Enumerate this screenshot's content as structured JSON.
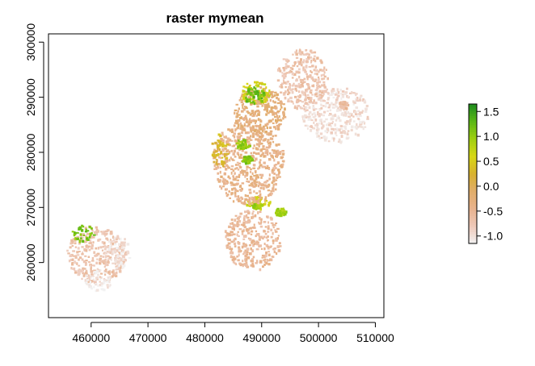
{
  "chart_data": {
    "type": "heatmap",
    "title": "raster mymean",
    "xlabel": "",
    "ylabel": "",
    "xlim": [
      452500,
      511500
    ],
    "ylim": [
      250000,
      301500
    ],
    "x_ticks": [
      460000,
      470000,
      480000,
      490000,
      500000,
      510000
    ],
    "x_tick_labels": [
      "460000",
      "470000",
      "480000",
      "490000",
      "500000",
      "510000"
    ],
    "y_ticks": [
      260000,
      270000,
      280000,
      290000,
      300000
    ],
    "y_tick_labels": [
      "260000",
      "270000",
      "280000",
      "290000",
      "300000"
    ],
    "grid": false,
    "colorbar": {
      "range": [
        -1.15,
        1.65
      ],
      "ticks": [
        -1.0,
        -0.5,
        0.0,
        0.5,
        1.0,
        1.5
      ],
      "tick_labels": [
        "-1.0",
        "-0.5",
        "0.0",
        "0.5",
        "1.0",
        "1.5"
      ],
      "palette": [
        "#f2f2f2",
        "#eec9b9",
        "#e8b38e",
        "#e1ad6a",
        "#d8b12f",
        "#d7d716",
        "#a0d010",
        "#5bb715",
        "#1e8c1e"
      ],
      "placement": "right"
    },
    "regions": [
      {
        "center": [
          460800,
          261700
        ],
        "radius_x": 5200,
        "radius_y": 5200,
        "value": -0.7
      },
      {
        "center": [
          458500,
          265500
        ],
        "radius_x": 2000,
        "radius_y": 1500,
        "value": 1.1
      },
      {
        "center": [
          464500,
          262000
        ],
        "radius_x": 2200,
        "radius_y": 3000,
        "value": -1.0
      },
      {
        "center": [
          461000,
          257000
        ],
        "radius_x": 2500,
        "radius_y": 2000,
        "value": -1.1
      },
      {
        "center": [
          488200,
          264200
        ],
        "radius_x": 5000,
        "radius_y": 5500,
        "value": -0.55
      },
      {
        "center": [
          489200,
          271000
        ],
        "radius_x": 2200,
        "radius_y": 1100,
        "value": 0.6
      },
      {
        "center": [
          489000,
          270500
        ],
        "radius_x": 900,
        "radius_y": 500,
        "value": 0.95
      },
      {
        "center": [
          493200,
          269300
        ],
        "radius_x": 900,
        "radius_y": 800,
        "value": 0.9
      },
      {
        "center": [
          487500,
          278500
        ],
        "radius_x": 6200,
        "radius_y": 8000,
        "value": -0.4
      },
      {
        "center": [
          489500,
          287500
        ],
        "radius_x": 4500,
        "radius_y": 4500,
        "value": -0.25
      },
      {
        "center": [
          488700,
          291000
        ],
        "radius_x": 2800,
        "radius_y": 2000,
        "value": 0.6
      },
      {
        "center": [
          488500,
          290500
        ],
        "radius_x": 1800,
        "radius_y": 1500,
        "value": 1.2
      },
      {
        "center": [
          486500,
          281500
        ],
        "radius_x": 1200,
        "radius_y": 1000,
        "value": 1.0
      },
      {
        "center": [
          487300,
          278800
        ],
        "radius_x": 900,
        "radius_y": 700,
        "value": 1.1
      },
      {
        "center": [
          482500,
          280500
        ],
        "radius_x": 1500,
        "radius_y": 3000,
        "value": 0.3
      },
      {
        "center": [
          503000,
          287000
        ],
        "radius_x": 6000,
        "radius_y": 5000,
        "value": -0.95
      },
      {
        "center": [
          504200,
          288700
        ],
        "radius_x": 900,
        "radius_y": 700,
        "value": -0.6
      },
      {
        "center": [
          497000,
          293500
        ],
        "radius_x": 4500,
        "radius_y": 5500,
        "value": -0.7
      }
    ]
  }
}
